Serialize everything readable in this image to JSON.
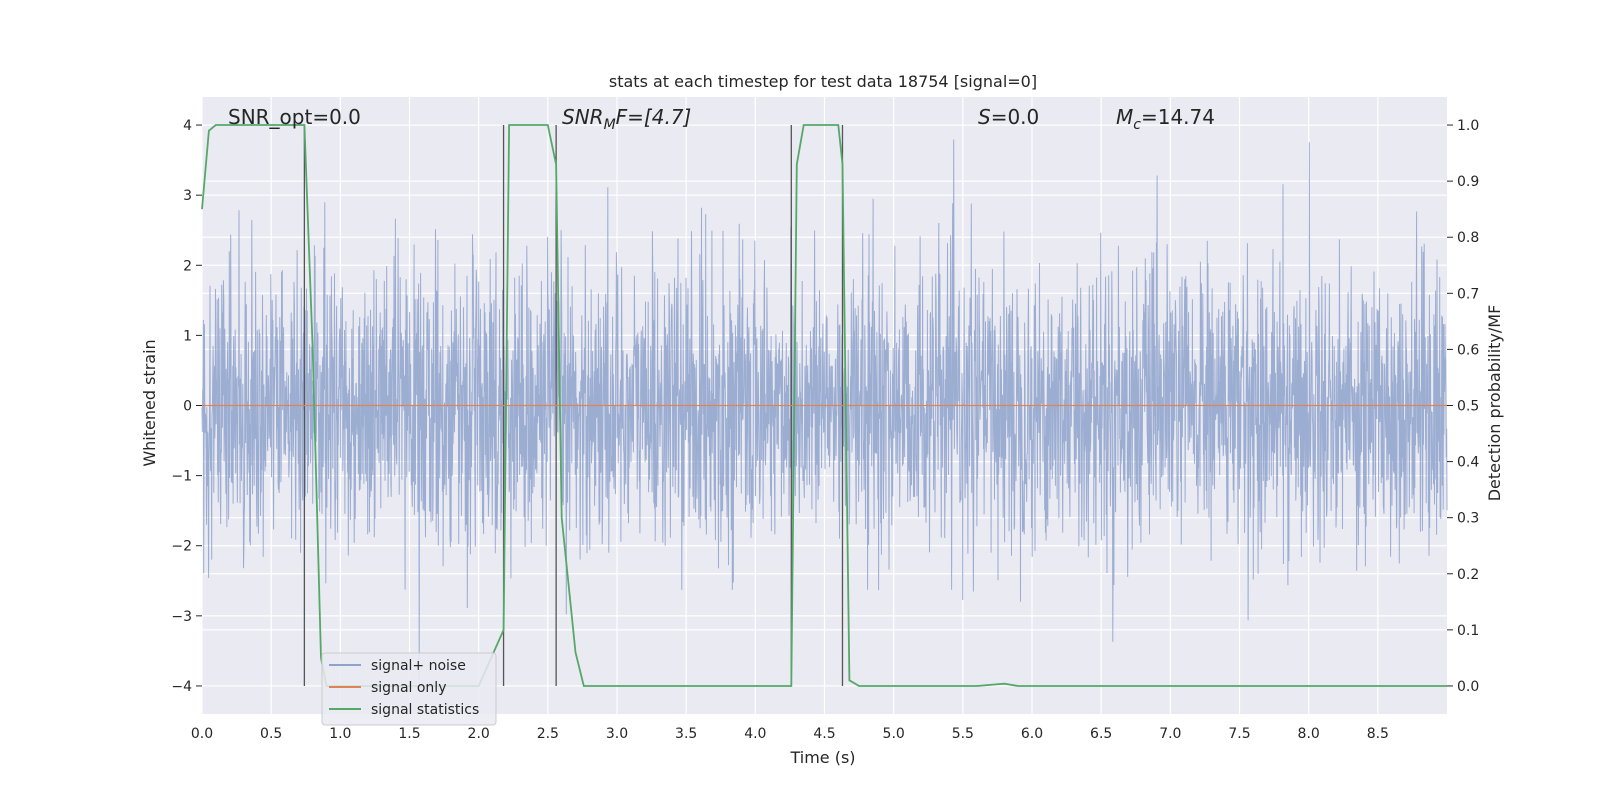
{
  "chart_data": {
    "type": "line",
    "title": "stats at each timestep for test data 18754 [signal=0]",
    "xlabel": "Time (s)",
    "ylabel_left": "Whitened strain",
    "ylabel_right": "Detection probability/MF",
    "xlim": [
      0.0,
      9.0
    ],
    "ylim_left": [
      -4.4,
      4.4
    ],
    "ylim_right": [
      -0.05,
      1.05
    ],
    "xticks": [
      "0.0",
      "0.5",
      "1.0",
      "1.5",
      "2.0",
      "2.5",
      "3.0",
      "3.5",
      "4.0",
      "4.5",
      "5.0",
      "5.5",
      "6.0",
      "6.5",
      "7.0",
      "7.5",
      "8.0",
      "8.5"
    ],
    "yticks_left": [
      "−4",
      "−3",
      "−2",
      "−1",
      "0",
      "1",
      "2",
      "3",
      "4"
    ],
    "yticks_right": [
      "0.0",
      "0.1",
      "0.2",
      "0.3",
      "0.4",
      "0.5",
      "0.6",
      "0.7",
      "0.8",
      "0.9",
      "1.0"
    ],
    "grid": true,
    "legend_placement": "lower-left",
    "annotations": {
      "snr_opt": "SNR_opt=0.0",
      "snr_mf_base": "SNR",
      "snr_mf_sub": "M",
      "snr_mf_rest": "F=[4.7]",
      "s_ital": "S",
      "s_rest": "=0.0",
      "mc_ital": "M",
      "mc_sub": "c",
      "mc_rest": "=14.74"
    },
    "vertical_lines_x": [
      0.74,
      2.18,
      2.56,
      4.26,
      4.63
    ],
    "series": [
      {
        "name": "signal+ noise",
        "color": "#8ea2cc",
        "description_values": "noise amplitude approx ±1.6 typical, peaks to ±3.9",
        "envelope": {
          "typical": 1.6,
          "max": 3.9
        }
      },
      {
        "name": "signal only",
        "color": "#dd8452",
        "x": [
          0.0,
          9.0
        ],
        "y": [
          0.0,
          0.0
        ]
      },
      {
        "name": "signal statistics",
        "color": "#55a868",
        "x": [
          0.0,
          0.05,
          0.1,
          0.6,
          0.74,
          0.8,
          0.86,
          0.9,
          2.0,
          2.18,
          2.22,
          2.25,
          2.5,
          2.56,
          2.6,
          2.7,
          2.76,
          2.82,
          4.26,
          4.3,
          4.35,
          4.6,
          4.63,
          4.68,
          4.75,
          5.6,
          5.8,
          5.9,
          7.0,
          8.0,
          9.0
        ],
        "y": [
          0.85,
          0.99,
          1.0,
          1.0,
          1.0,
          0.6,
          0.05,
          0.0,
          0.0,
          0.1,
          1.0,
          1.0,
          1.0,
          0.93,
          0.3,
          0.06,
          0.0,
          0.0,
          0.0,
          0.93,
          1.0,
          1.0,
          0.93,
          0.01,
          0.0,
          0.0,
          0.004,
          0.0,
          0.0,
          0.0,
          0.0
        ]
      }
    ]
  }
}
